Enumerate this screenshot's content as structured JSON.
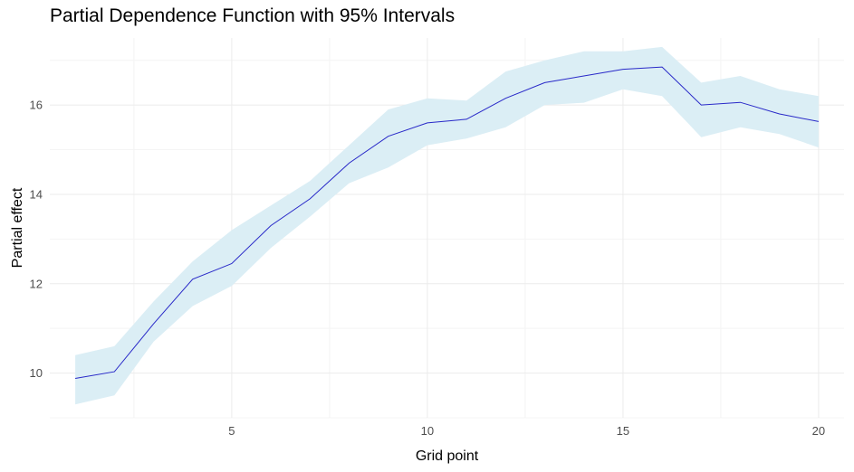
{
  "chart_data": {
    "type": "line",
    "title": "Partial Dependence Function with 95% Intervals",
    "xlabel": "Grid point",
    "ylabel": "Partial effect",
    "xlim": [
      0.35,
      20.65
    ],
    "ylim": [
      9.0,
      17.5
    ],
    "x_ticks": [
      5,
      10,
      15,
      20
    ],
    "y_ticks": [
      10,
      12,
      14,
      16
    ],
    "x_minor_grid": [
      2.5,
      7.5,
      12.5,
      17.5
    ],
    "y_minor_grid": [
      9,
      11,
      13,
      15,
      17
    ],
    "grid": true,
    "legend": "none",
    "series": [
      {
        "x": [
          1,
          2,
          3,
          4,
          5,
          6,
          7,
          8,
          9,
          10,
          11,
          12,
          13,
          14,
          15,
          16,
          17,
          18,
          19,
          20
        ],
        "values": [
          9.88,
          10.03,
          11.1,
          12.1,
          12.45,
          13.3,
          13.9,
          14.7,
          15.3,
          15.6,
          15.68,
          16.15,
          16.5,
          16.65,
          16.8,
          16.85,
          16.0,
          16.06,
          15.8,
          15.63
        ],
        "lower": [
          9.3,
          9.5,
          10.7,
          11.5,
          11.95,
          12.8,
          13.5,
          14.25,
          14.6,
          15.1,
          15.25,
          15.5,
          16.0,
          16.05,
          16.35,
          16.2,
          15.28,
          15.5,
          15.35,
          15.05
        ],
        "upper": [
          10.4,
          10.6,
          11.6,
          12.5,
          13.2,
          13.75,
          14.3,
          15.1,
          15.9,
          16.15,
          16.1,
          16.75,
          17.0,
          17.2,
          17.2,
          17.3,
          16.5,
          16.65,
          16.35,
          16.2
        ]
      }
    ],
    "colors": {
      "line": "#2828c8",
      "band": "#dbeef5",
      "grid_major": "#ebebeb",
      "grid_minor": "#f4f4f4",
      "tick_text": "#4d4d4d",
      "text": "#000000"
    }
  }
}
